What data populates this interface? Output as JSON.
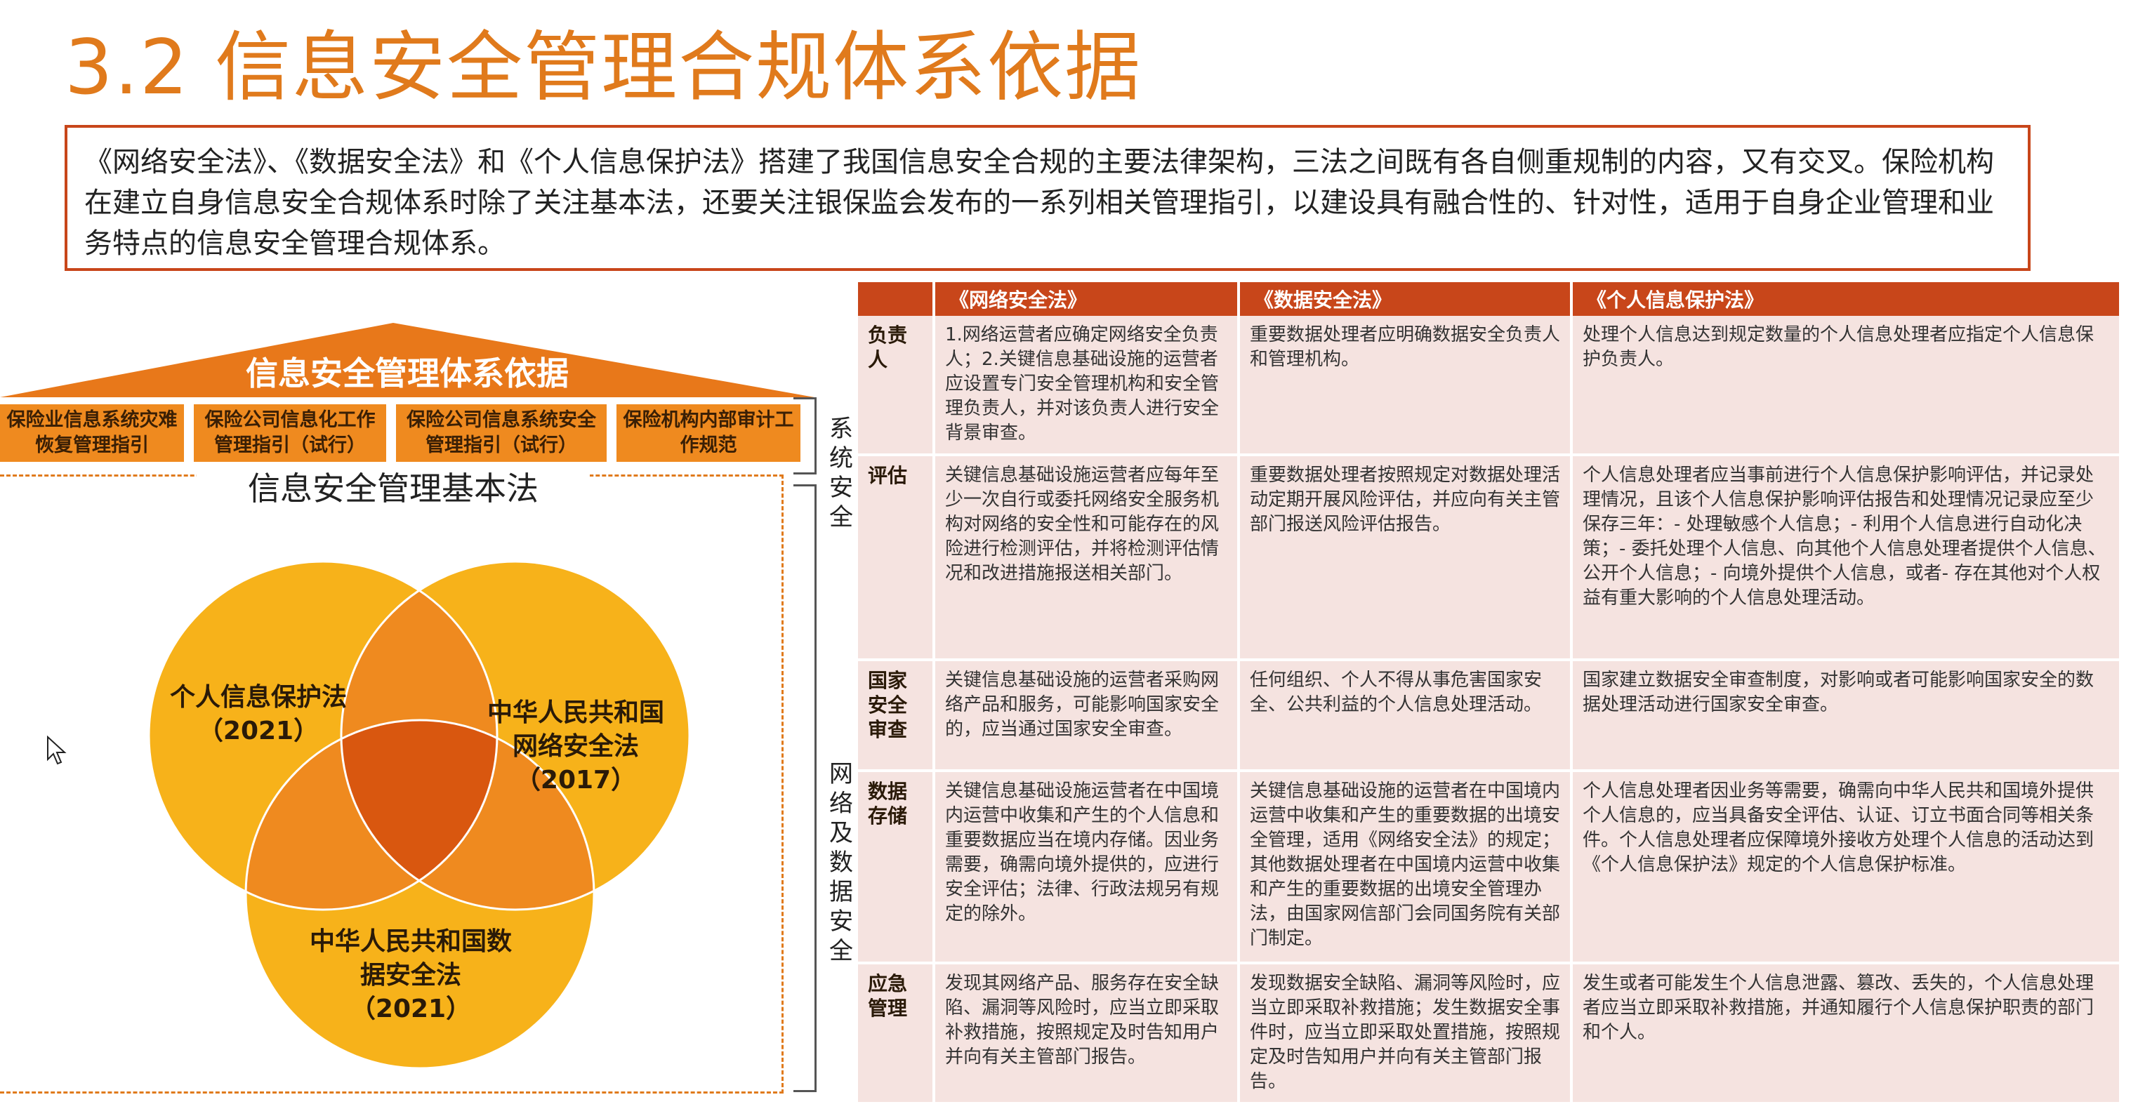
{
  "title": "3.2 信息安全管理合规体系依据",
  "intro": "《网络安全法》、《数据安全法》和《个人信息保护法》搭建了我国信息安全合规的主要法律架构，三法之间既有各自侧重规制的内容，又有交叉。保险机构在建立自身信息安全合规体系时除了关注基本法，还要关注银保监会发布的一系列相关管理指引，以建设具有融合性的、针对性，适用于自身企业管理和业务特点的信息安全管理合规体系。",
  "diagram": {
    "roof_title": "信息安全管理体系依据",
    "pillars": [
      "保险业信息系统灾难恢复管理指引",
      "保险公司信息化工作管理指引（试行）",
      "保险公司信息系统安全管理指引（试行）",
      "保险机构内部审计工作规范"
    ],
    "base_title": "信息安全管理基本法",
    "venn": {
      "left": {
        "name": "个人信息保护法",
        "year": "（2021）"
      },
      "right": {
        "name": "中华人民共和国网络安全法",
        "year": "（2017）"
      },
      "bottom": {
        "name": "中华人民共和国数据安全法",
        "year": "（2021）"
      }
    },
    "side_labels": {
      "system": "系统安全",
      "network": "网络及数据安全"
    }
  },
  "table": {
    "headers": [
      "",
      "《网络安全法》",
      "《数据安全法》",
      "《个人信息保护法》"
    ],
    "rows": [
      {
        "label": "负责人",
        "cells": [
          "1.网络运营者应确定网络安全负责人；2.关键信息基础设施的运营者应设置专门安全管理机构和安全管理负责人，并对该负责人进行安全背景审查。",
          "重要数据处理者应明确数据安全负责人和管理机构。",
          "处理个人信息达到规定数量的个人信息处理者应指定个人信息保护负责人。"
        ]
      },
      {
        "label": "评估",
        "cells": [
          "关键信息基础设施运营者应每年至少一次自行或委托网络安全服务机构对网络的安全性和可能存在的风险进行检测评估，并将检测评估情况和改进措施报送相关部门。",
          "重要数据处理者按照规定对数据处理活动定期开展风险评估，并应向有关主管部门报送风险评估报告。",
          "个人信息处理者应当事前进行个人信息保护影响评估，并记录处理情况，且该个人信息保护影响评估报告和处理情况记录应至少保存三年：- 处理敏感个人信息；- 利用个人信息进行自动化决策；- 委托处理个人信息、向其他个人信息处理者提供个人信息、公开个人信息；- 向境外提供个人信息，或者- 存在其他对个人权益有重大影响的个人信息处理活动。"
        ]
      },
      {
        "label": "国家安全审查",
        "cells": [
          "关键信息基础设施的运营者采购网络产品和服务，可能影响国家安全的，应当通过国家安全审查。",
          "任何组织、个人不得从事危害国家安全、公共利益的个人信息处理活动。",
          "国家建立数据安全审查制度，对影响或者可能影响国家安全的数据处理活动进行国家安全审查。"
        ]
      },
      {
        "label": "数据存储",
        "cells": [
          "关键信息基础设施运营者在中国境内运营中收集和产生的个人信息和重要数据应当在境内存储。因业务需要，确需向境外提供的，应进行安全评估；法律、行政法规另有规定的除外。",
          "关键信息基础设施的运营者在中国境内运营中收集和产生的重要数据的出境安全管理，适用《网络安全法》的规定；其他数据处理者在中国境内运营中收集和产生的重要数据的出境安全管理办法，由国家网信部门会同国务院有关部门制定。",
          "个人信息处理者因业务等需要，确需向中华人民共和国境外提供个人信息的，应当具备安全评估、认证、订立书面合同等相关条件。个人信息处理者应保障境外接收方处理个人信息的活动达到《个人信息保护法》规定的个人信息保护标准。"
        ]
      },
      {
        "label": "应急管理",
        "cells": [
          "发现其网络产品、服务存在安全缺陷、漏洞等风险时，应当立即采取补救措施，按照规定及时告知用户并向有关主管部门报告。",
          "发现数据安全缺陷、漏洞等风险时，应当立即采取补救措施；发生数据安全事件时，应当立即采取处置措施，按照规定及时告知用户并向有关主管部门报告。",
          "发生或者可能发生个人信息泄露、篡改、丢失的，个人信息处理者应当立即采取补救措施，并通知履行个人信息保护职责的部门和个人。"
        ]
      }
    ]
  },
  "colors": {
    "title": "#e07a1c",
    "accent": "#c8461a",
    "roof": "#e8781a",
    "pillar": "#ef8a1f",
    "circle": "#f7b21a",
    "overlap": "#ef8a1f",
    "center": "#d9570f",
    "table_cell": "#f5e3e0"
  },
  "icons": {
    "cursor": "mouse-pointer-icon"
  }
}
